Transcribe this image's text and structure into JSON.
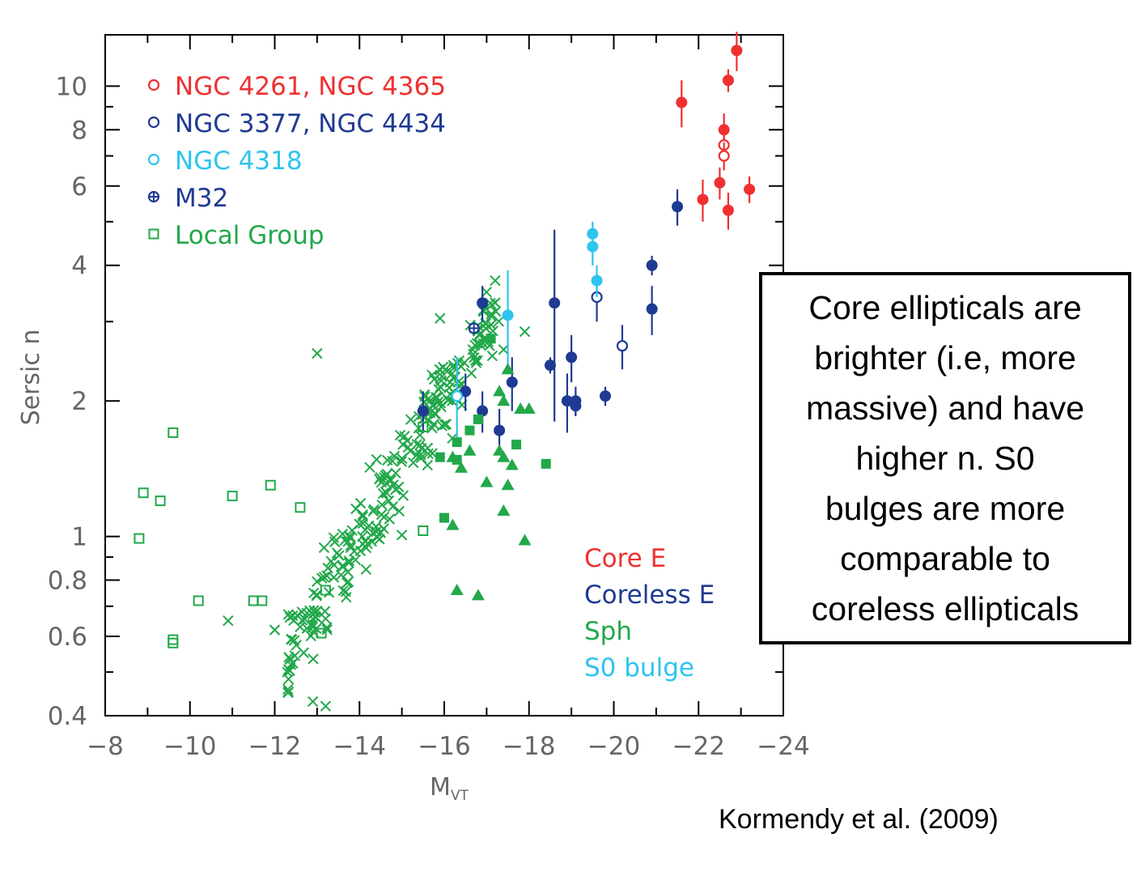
{
  "chart_data": {
    "type": "scatter",
    "title": "",
    "xlabel": "M",
    "xlabel_sub": "VT",
    "ylabel": "Sersic n",
    "xlim": [
      -8,
      -24
    ],
    "ylim": [
      0.4,
      13
    ],
    "y_scale": "log",
    "x_ticks": [
      -8,
      -10,
      -12,
      -14,
      -16,
      -18,
      -20,
      -22,
      -24
    ],
    "x_tick_labels": [
      "−8",
      "−10",
      "−12",
      "−14",
      "−16",
      "−18",
      "−20",
      "−22",
      "−24"
    ],
    "y_ticks": [
      0.4,
      0.6,
      0.8,
      1,
      2,
      4,
      6,
      8,
      10
    ],
    "y_tick_labels": [
      "0.4",
      "0.6",
      "0.8",
      "1",
      "2",
      "4",
      "6",
      "8",
      "10"
    ],
    "legend_symbols": [
      {
        "symbol": "open-circle",
        "label": "NGC 4261, NGC 4365",
        "color": "#f03030"
      },
      {
        "symbol": "open-circle",
        "label": "NGC 3377, NGC 4434",
        "color": "#1f3a93"
      },
      {
        "symbol": "open-circle",
        "label": "NGC 4318",
        "color": "#2ec4ee"
      },
      {
        "symbol": "circle-plus",
        "label": "M32",
        "color": "#1f3a93"
      },
      {
        "symbol": "open-square",
        "label": "Local Group",
        "color": "#22a84a"
      }
    ],
    "legend_classes": [
      {
        "label": "Core E",
        "color": "#f03030"
      },
      {
        "label": "Coreless E",
        "color": "#1f3a93"
      },
      {
        "label": "Sph",
        "color": "#22a84a"
      },
      {
        "label": "S0 bulge",
        "color": "#2ec4ee"
      }
    ],
    "series": [
      {
        "class": "Core E",
        "color": "#f03030",
        "marker": "filled-circle",
        "points": [
          [
            -21.6,
            9.2,
            1.1
          ],
          [
            -22.7,
            10.3,
            0.6
          ],
          [
            -22.9,
            12.0,
            1.2
          ],
          [
            -22.6,
            8.0,
            0.7
          ],
          [
            -22.1,
            5.6,
            0.6
          ],
          [
            -22.5,
            6.1,
            0.5
          ],
          [
            -22.7,
            5.3,
            0.5
          ],
          [
            -23.2,
            5.9,
            0.4
          ]
        ]
      },
      {
        "class": "Core E",
        "color": "#f03030",
        "marker": "open-circle",
        "points": [
          [
            -22.6,
            7.4,
            0.5
          ],
          [
            -22.6,
            7.0,
            0.5
          ]
        ]
      },
      {
        "class": "Coreless E",
        "color": "#1f3a93",
        "marker": "filled-circle",
        "points": [
          [
            -21.5,
            5.4,
            0.5
          ],
          [
            -20.9,
            4.0,
            0.2
          ],
          [
            -20.9,
            3.2,
            0.4
          ],
          [
            -18.6,
            3.3,
            1.5
          ],
          [
            -16.9,
            3.3,
            0.3
          ],
          [
            -18.5,
            2.4,
            0.1
          ],
          [
            -19.0,
            2.5,
            0.3
          ],
          [
            -17.6,
            2.2,
            0.3
          ],
          [
            -16.5,
            2.1,
            0.2
          ],
          [
            -15.5,
            1.9,
            0.2
          ],
          [
            -16.9,
            1.9,
            0.2
          ],
          [
            -19.8,
            2.05,
            0.1
          ],
          [
            -18.9,
            2.0,
            0.3
          ],
          [
            -19.1,
            2.0,
            0.15
          ],
          [
            -19.1,
            1.95,
            0.1
          ],
          [
            -17.3,
            1.72,
            0.2
          ]
        ]
      },
      {
        "class": "Coreless E",
        "color": "#1f3a93",
        "marker": "open-circle",
        "points": [
          [
            -19.6,
            3.4,
            0.4
          ],
          [
            -20.2,
            2.65,
            0.3
          ]
        ]
      },
      {
        "class": "Coreless E",
        "color": "#1f3a93",
        "marker": "circle-plus",
        "points": [
          [
            -16.7,
            2.9,
            0.05
          ]
        ]
      },
      {
        "class": "S0 bulge",
        "color": "#2ec4ee",
        "marker": "filled-circle",
        "points": [
          [
            -19.5,
            4.7,
            0.3
          ],
          [
            -19.5,
            4.4,
            0.4
          ],
          [
            -19.6,
            3.7,
            0.3
          ],
          [
            -17.5,
            3.1,
            0.8
          ]
        ]
      },
      {
        "class": "S0 bulge",
        "color": "#2ec4ee",
        "marker": "open-circle",
        "points": [
          [
            -16.3,
            2.05,
            0.45
          ]
        ]
      },
      {
        "class": "Sph",
        "color": "#22a84a",
        "marker": "filled-triangle",
        "points": [
          [
            -17.5,
            2.35
          ],
          [
            -17.3,
            2.1
          ],
          [
            -17.4,
            2.0
          ],
          [
            -17.8,
            1.92
          ],
          [
            -18.0,
            1.92
          ],
          [
            -17.3,
            1.55
          ],
          [
            -17.4,
            1.5
          ],
          [
            -17.6,
            1.44
          ],
          [
            -16.6,
            1.55
          ],
          [
            -17.5,
            1.3
          ],
          [
            -17.0,
            1.32
          ],
          [
            -16.2,
            1.5
          ],
          [
            -16.4,
            1.42
          ],
          [
            -17.4,
            1.14
          ],
          [
            -16.2,
            1.06
          ],
          [
            -17.9,
            0.98
          ],
          [
            -16.3,
            0.76
          ],
          [
            -16.8,
            0.74
          ]
        ]
      },
      {
        "class": "Sph",
        "color": "#22a84a",
        "marker": "filled-square",
        "points": [
          [
            -17.1,
            2.75
          ],
          [
            -16.3,
            1.62
          ],
          [
            -16.6,
            1.72
          ],
          [
            -16.8,
            1.82
          ],
          [
            -17.7,
            1.6
          ],
          [
            -15.9,
            1.5
          ],
          [
            -16.3,
            1.48
          ],
          [
            -18.4,
            1.45
          ],
          [
            -16.0,
            1.1
          ]
        ]
      },
      {
        "class": "Sph",
        "color": "#22a84a",
        "marker": "open-square",
        "points": [
          [
            -15.5,
            1.75
          ],
          [
            -15.5,
            1.03
          ]
        ]
      },
      {
        "class": "Local Group",
        "color": "#22a84a",
        "marker": "open-square",
        "points": [
          [
            -9.6,
            1.7
          ],
          [
            -8.9,
            1.25
          ],
          [
            -9.3,
            1.2
          ],
          [
            -8.8,
            0.99
          ],
          [
            -11.0,
            1.23
          ],
          [
            -11.9,
            1.3
          ],
          [
            -12.6,
            1.16
          ],
          [
            -10.2,
            0.72
          ],
          [
            -11.5,
            0.72
          ],
          [
            -11.7,
            0.72
          ],
          [
            -13.2,
            0.76
          ],
          [
            -13.1,
            0.61
          ],
          [
            -9.6,
            0.59
          ],
          [
            -9.6,
            0.58
          ]
        ]
      }
    ]
  },
  "annotation": {
    "lines": [
      "Core ellipticals are",
      "brighter (i.e, more",
      "massive) and have",
      "higher n. S0",
      "bulges are more",
      "comparable to",
      "coreless ellipticals"
    ]
  },
  "citation": "Kormendy et al. (2009)"
}
